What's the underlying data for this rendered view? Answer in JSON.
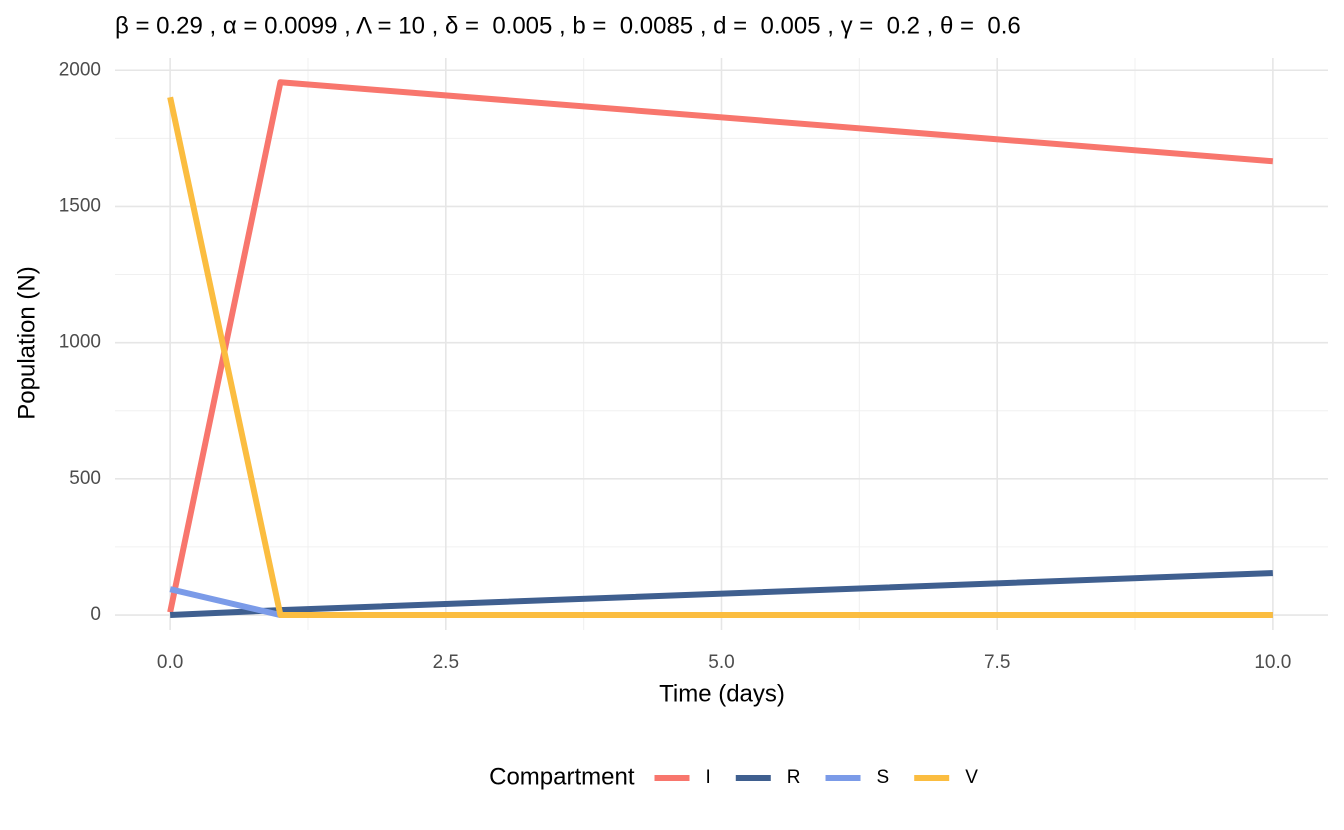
{
  "chart_data": {
    "type": "line",
    "title": "β = 0.29 , α = 0.0099 , Λ = 10 , δ =  0.005 , b =  0.0085 , d =  0.005 , γ =  0.2 , θ =  0.6",
    "x_label": "Time (days)",
    "y_label": "Population (N)",
    "legend_title": "Compartment",
    "x": [
      0,
      1,
      10
    ],
    "series": [
      {
        "name": "I",
        "color": "#f8766d",
        "values": [
          10,
          1956,
          1666
        ]
      },
      {
        "name": "R",
        "color": "#3f5f8f",
        "values": [
          0,
          18,
          154
        ]
      },
      {
        "name": "S",
        "color": "#7b9be8",
        "values": [
          95,
          0,
          0
        ]
      },
      {
        "name": "V",
        "color": "#fbbd40",
        "values": [
          1901,
          0,
          0
        ]
      }
    ],
    "xlim": [
      -0.5,
      10.5
    ],
    "xticks": [
      {
        "value": 0,
        "label": "0.0"
      },
      {
        "value": 2.5,
        "label": "2.5"
      },
      {
        "value": 5,
        "label": "5.0"
      },
      {
        "value": 7.5,
        "label": "7.5"
      },
      {
        "value": 10,
        "label": "10.0"
      }
    ],
    "ylim": [
      -55,
      2045
    ],
    "yticks": [
      0,
      500,
      1000,
      1500,
      2000
    ],
    "grid": true,
    "legend_position": "bottom"
  }
}
